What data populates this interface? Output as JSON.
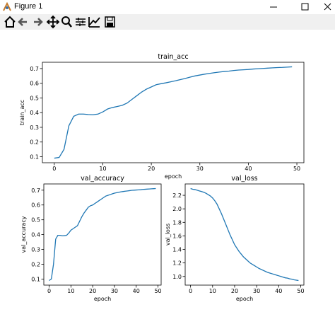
{
  "window": {
    "title": "Figure 1"
  },
  "chart_data": [
    {
      "type": "line",
      "title": "train_acc",
      "xlabel": "epoch",
      "ylabel": "train_acc",
      "color": "#1f77b4",
      "x": [
        0,
        1,
        2,
        3,
        4,
        5,
        6,
        7,
        8,
        9,
        10,
        11,
        12,
        13,
        14,
        15,
        16,
        17,
        18,
        19,
        20,
        21,
        22,
        23,
        24,
        25,
        26,
        27,
        28,
        29,
        30,
        31,
        32,
        33,
        34,
        35,
        36,
        37,
        38,
        39,
        40,
        41,
        42,
        43,
        44,
        45,
        46,
        47,
        48,
        49
      ],
      "values": [
        0.09,
        0.095,
        0.15,
        0.31,
        0.375,
        0.39,
        0.39,
        0.387,
        0.386,
        0.39,
        0.405,
        0.425,
        0.435,
        0.442,
        0.45,
        0.465,
        0.49,
        0.515,
        0.54,
        0.56,
        0.575,
        0.59,
        0.597,
        0.603,
        0.61,
        0.617,
        0.625,
        0.633,
        0.642,
        0.65,
        0.656,
        0.662,
        0.667,
        0.672,
        0.676,
        0.68,
        0.683,
        0.687,
        0.69,
        0.692,
        0.694,
        0.697,
        0.699,
        0.701,
        0.703,
        0.705,
        0.707,
        0.708,
        0.71,
        0.712
      ],
      "xlim": [
        -2.45,
        51.45
      ],
      "ylim": [
        0.059,
        0.743
      ],
      "xticks": [
        0,
        10,
        20,
        30,
        40,
        50
      ],
      "yticks": [
        0.1,
        0.2,
        0.3,
        0.4,
        0.5,
        0.6,
        0.7
      ]
    },
    {
      "type": "line",
      "title": "val_accuracy",
      "xlabel": "epoch",
      "ylabel": "val_accuracy",
      "color": "#1f77b4",
      "x": [
        0,
        1,
        2,
        3,
        4,
        5,
        6,
        7,
        8,
        9,
        10,
        11,
        12,
        13,
        14,
        15,
        16,
        17,
        18,
        19,
        20,
        21,
        22,
        23,
        24,
        25,
        26,
        27,
        28,
        29,
        30,
        31,
        32,
        33,
        34,
        35,
        36,
        37,
        38,
        39,
        40,
        41,
        42,
        43,
        44,
        45,
        46,
        47,
        48,
        49
      ],
      "values": [
        0.09,
        0.1,
        0.2,
        0.37,
        0.395,
        0.395,
        0.392,
        0.393,
        0.395,
        0.41,
        0.43,
        0.44,
        0.45,
        0.46,
        0.49,
        0.52,
        0.545,
        0.565,
        0.585,
        0.595,
        0.6,
        0.61,
        0.62,
        0.63,
        0.64,
        0.65,
        0.66,
        0.665,
        0.67,
        0.675,
        0.68,
        0.683,
        0.686,
        0.689,
        0.691,
        0.693,
        0.695,
        0.697,
        0.699,
        0.7,
        0.701,
        0.702,
        0.703,
        0.705,
        0.706,
        0.707,
        0.708,
        0.709,
        0.71,
        0.711
      ],
      "xlim": [
        -2.45,
        51.45
      ],
      "ylim": [
        0.059,
        0.742
      ],
      "xticks": [
        0,
        10,
        20,
        30,
        40,
        50
      ],
      "yticks": [
        0.1,
        0.2,
        0.3,
        0.4,
        0.5,
        0.6,
        0.7
      ]
    },
    {
      "type": "line",
      "title": "val_loss",
      "xlabel": "epoch",
      "ylabel": "val_loss",
      "color": "#1f77b4",
      "x": [
        0,
        1,
        2,
        3,
        4,
        5,
        6,
        7,
        8,
        9,
        10,
        11,
        12,
        13,
        14,
        15,
        16,
        17,
        18,
        19,
        20,
        21,
        22,
        23,
        24,
        25,
        26,
        27,
        28,
        29,
        30,
        31,
        32,
        33,
        34,
        35,
        36,
        37,
        38,
        39,
        40,
        41,
        42,
        43,
        44,
        45,
        46,
        47,
        48,
        49
      ],
      "values": [
        2.3,
        2.29,
        2.285,
        2.275,
        2.265,
        2.255,
        2.245,
        2.23,
        2.21,
        2.19,
        2.16,
        2.12,
        2.07,
        2.0,
        1.93,
        1.85,
        1.77,
        1.69,
        1.61,
        1.54,
        1.47,
        1.42,
        1.37,
        1.33,
        1.29,
        1.26,
        1.23,
        1.2,
        1.18,
        1.16,
        1.14,
        1.12,
        1.105,
        1.09,
        1.075,
        1.06,
        1.05,
        1.04,
        1.03,
        1.02,
        1.01,
        1.0,
        0.99,
        0.98,
        0.975,
        0.965,
        0.96,
        0.95,
        0.945,
        0.94
      ],
      "xlim": [
        -2.45,
        51.45
      ],
      "ylim": [
        0.872,
        2.368
      ],
      "xticks": [
        0,
        10,
        20,
        30,
        40,
        50
      ],
      "yticks": [
        {
          "value": 1,
          "label": "1.0"
        },
        1.2,
        1.4,
        1.6,
        1.8,
        {
          "value": 2,
          "label": "2.0"
        },
        2.2
      ]
    }
  ]
}
